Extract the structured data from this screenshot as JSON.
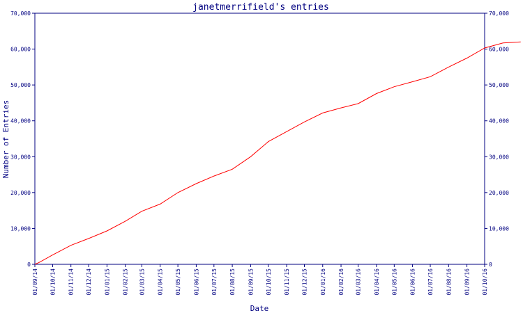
{
  "chart_data": {
    "type": "line",
    "title": "janetmerrifield's entries",
    "xlabel": "Date",
    "ylabel": "Number of Entries",
    "ylim": [
      0,
      70000
    ],
    "y_ticks": [
      "0",
      "10,000",
      "20,000",
      "30,000",
      "40,000",
      "50,000",
      "60,000",
      "70,000"
    ],
    "y_tick_values": [
      0,
      10000,
      20000,
      30000,
      40000,
      50000,
      60000,
      70000
    ],
    "x_ticks": [
      "01/09/14",
      "01/10/14",
      "01/11/14",
      "01/12/14",
      "01/01/15",
      "01/02/15",
      "01/03/15",
      "01/04/15",
      "01/05/15",
      "01/06/15",
      "01/07/15",
      "01/08/15",
      "01/09/15",
      "01/10/15",
      "01/11/15",
      "01/12/15",
      "01/01/16",
      "01/02/16",
      "01/03/16",
      "01/04/16",
      "01/05/16",
      "01/06/16",
      "01/07/16",
      "01/08/16",
      "01/09/16",
      "01/10/16"
    ],
    "grid": false,
    "right_axis": true,
    "line_color": "#ff0000",
    "axis_color": "#000080",
    "series": [
      {
        "points": [
          [
            "01/09/14",
            0
          ],
          [
            "08/09/14",
            500
          ],
          [
            "01/10/14",
            2600
          ],
          [
            "01/11/14",
            5300
          ],
          [
            "01/12/14",
            7200
          ],
          [
            "01/01/15",
            9300
          ],
          [
            "01/02/15",
            12000
          ],
          [
            "01/03/15",
            14800
          ],
          [
            "01/04/15",
            16800
          ],
          [
            "01/05/15",
            20000
          ],
          [
            "01/06/15",
            22500
          ],
          [
            "01/07/15",
            24600
          ],
          [
            "01/08/15",
            26500
          ],
          [
            "01/09/15",
            30000
          ],
          [
            "01/10/15",
            34200
          ],
          [
            "01/11/15",
            37000
          ],
          [
            "01/12/15",
            39700
          ],
          [
            "01/01/16",
            42200
          ],
          [
            "01/02/16",
            43600
          ],
          [
            "01/03/16",
            44800
          ],
          [
            "01/04/16",
            47600
          ],
          [
            "01/05/16",
            49500
          ],
          [
            "01/06/16",
            50900
          ],
          [
            "01/07/16",
            52300
          ],
          [
            "01/08/16",
            55000
          ],
          [
            "01/09/16",
            57500
          ],
          [
            "01/10/16",
            60300
          ],
          [
            "01/11/16",
            61700
          ],
          [
            "01/12/16",
            62000
          ]
        ]
      }
    ]
  }
}
